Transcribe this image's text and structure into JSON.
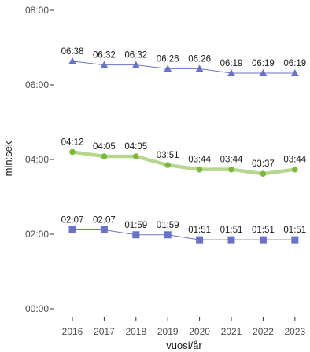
{
  "chart_data": {
    "type": "line",
    "xlabel": "vuosi/år",
    "ylabel": "min:sek",
    "x": [
      "2016",
      "2017",
      "2018",
      "2019",
      "2020",
      "2021",
      "2022",
      "2023"
    ],
    "ylim": [
      0,
      480
    ],
    "yticks": [
      {
        "value": 0,
        "label": "00:00"
      },
      {
        "value": 120,
        "label": "02:00"
      },
      {
        "value": 240,
        "label": "04:00"
      },
      {
        "value": 360,
        "label": "06:00"
      },
      {
        "value": 480,
        "label": "08:00"
      }
    ],
    "grid": false,
    "series": [
      {
        "marker": "triangle",
        "color": "#6a72c8",
        "line_width": "thin",
        "values": [
          398,
          392,
          392,
          386,
          386,
          379,
          379,
          379
        ],
        "labels": [
          "06:38",
          "06:32",
          "06:32",
          "06:26",
          "06:26",
          "06:19",
          "06:19",
          "06:19"
        ]
      },
      {
        "marker": "circle",
        "color": "#7db83a",
        "line_color": "#b5d68c",
        "line_width": "thick",
        "values": [
          252,
          245,
          245,
          231,
          224,
          224,
          217,
          224
        ],
        "labels": [
          "04:12",
          "04:05",
          "04:05",
          "03:51",
          "03:44",
          "03:44",
          "03:37",
          "03:44"
        ]
      },
      {
        "marker": "square",
        "color": "#6a72c8",
        "line_width": "thin",
        "values": [
          127,
          127,
          119,
          119,
          111,
          111,
          111,
          111
        ],
        "labels": [
          "02:07",
          "02:07",
          "01:59",
          "01:59",
          "01:51",
          "01:51",
          "01:51",
          "01:51"
        ]
      }
    ]
  }
}
